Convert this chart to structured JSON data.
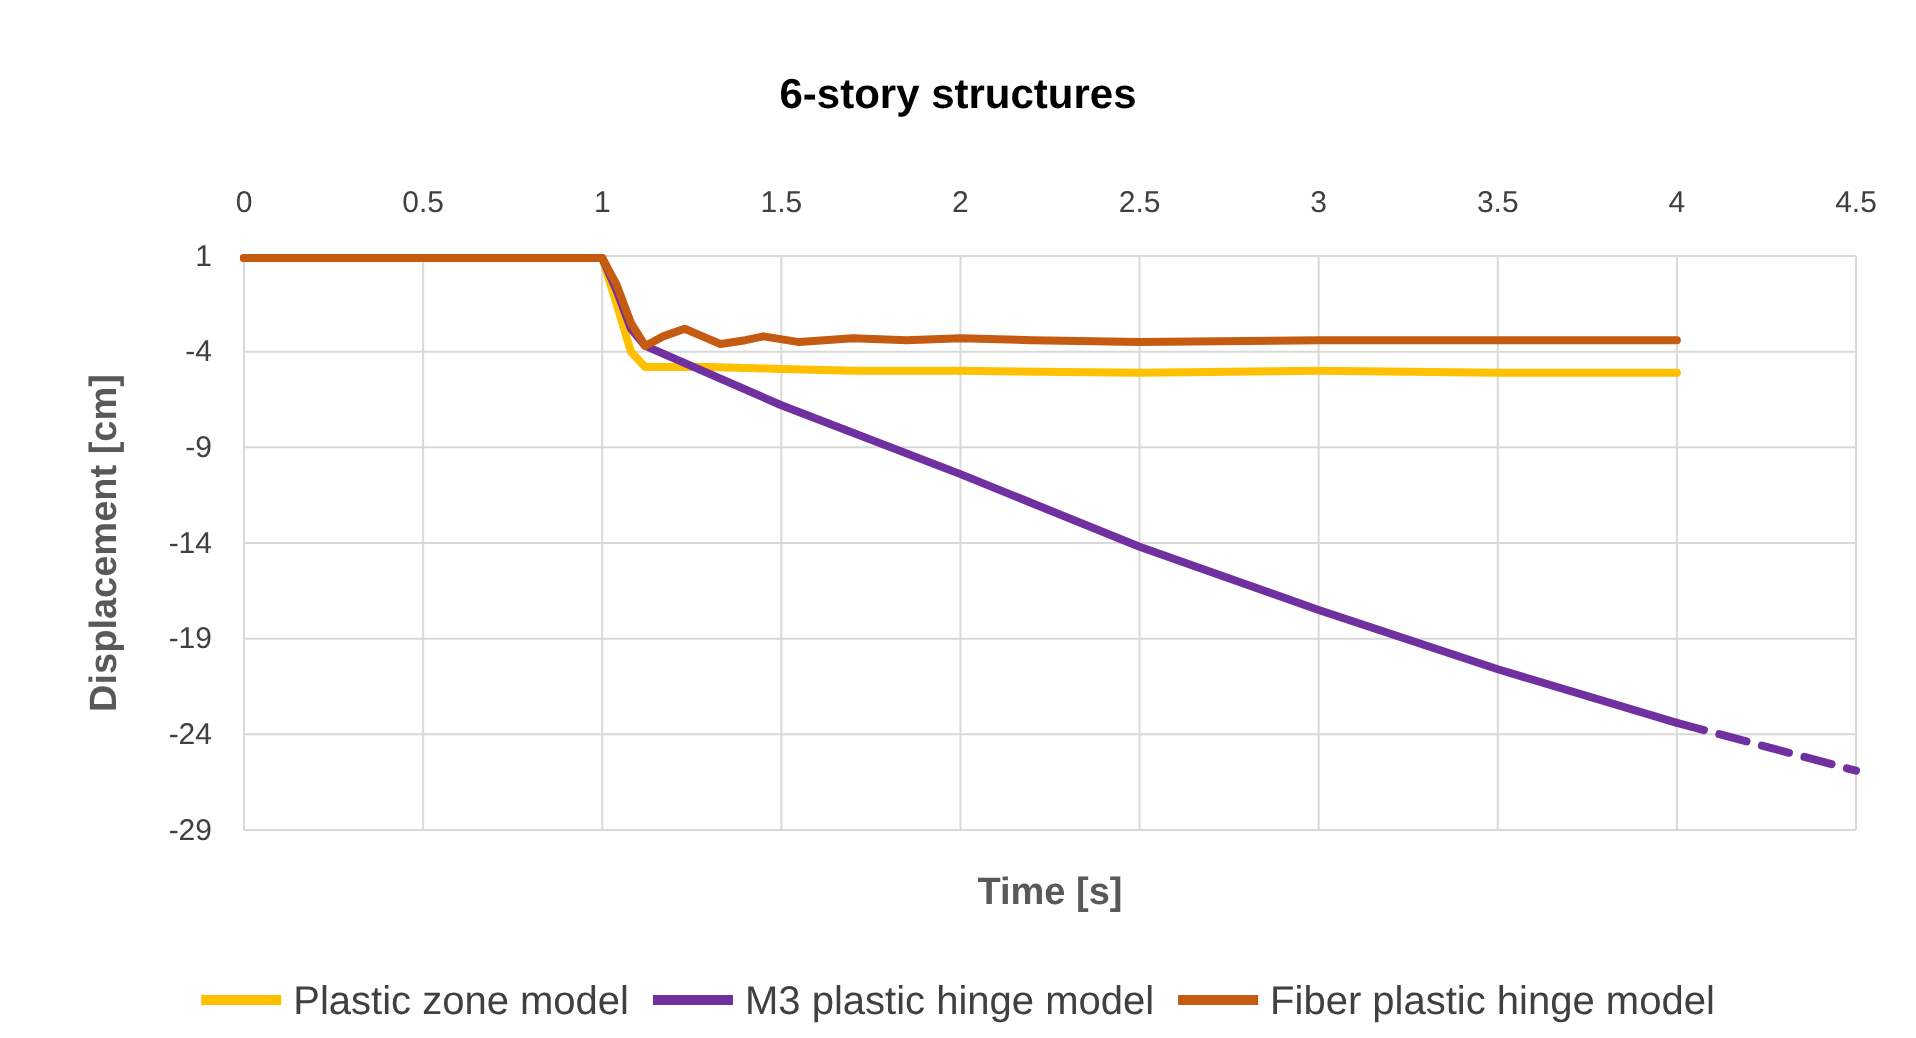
{
  "chart_data": {
    "type": "line",
    "title": "6-story structures",
    "xlabel": "Time [s]",
    "ylabel": "Displacement [cm]",
    "xlim": [
      0,
      4.5
    ],
    "xticks": [
      0,
      0.5,
      1,
      1.5,
      2,
      2.5,
      3,
      3.5,
      4,
      4.5
    ],
    "ylim": [
      -29,
      1
    ],
    "yticks": [
      1,
      -4,
      -9,
      -14,
      -19,
      -24,
      -29
    ],
    "grid": true,
    "legend": "bottom",
    "marker": "none",
    "line_style": "solid",
    "series": [
      {
        "name": "Plastic zone model",
        "color": "#ffc000",
        "x": [
          0,
          1,
          1.04,
          1.08,
          1.12,
          1.2,
          1.3,
          1.5,
          1.7,
          2,
          2.5,
          3,
          3.5,
          4
        ],
        "values": [
          0.9,
          0.9,
          -1.5,
          -4.0,
          -4.8,
          -4.8,
          -4.8,
          -4.9,
          -5.0,
          -5.0,
          -5.1,
          -5.0,
          -5.1,
          -5.1
        ]
      },
      {
        "name": "M3 plastic hinge model",
        "color": "#7030a0",
        "x": [
          0,
          1,
          1.04,
          1.08,
          1.12,
          1.5,
          2,
          2.5,
          3,
          3.5,
          4
        ],
        "values": [
          0.9,
          0.9,
          -0.8,
          -2.8,
          -3.7,
          -6.8,
          -10.4,
          -14.2,
          -17.5,
          -20.6,
          -23.4
        ]
      },
      {
        "color": "#7030a0",
        "line_style": "dashed",
        "x": [
          4,
          4.5
        ],
        "values": [
          -23.4,
          -25.9
        ]
      },
      {
        "name": "Fiber plastic hinge model",
        "color": "#c55a11",
        "x": [
          0,
          1,
          1.04,
          1.08,
          1.12,
          1.17,
          1.23,
          1.28,
          1.33,
          1.4,
          1.45,
          1.55,
          1.7,
          1.85,
          2,
          2.2,
          2.5,
          3,
          3.5,
          4
        ],
        "values": [
          0.9,
          0.9,
          -0.5,
          -2.5,
          -3.7,
          -3.2,
          -2.8,
          -3.2,
          -3.6,
          -3.4,
          -3.2,
          -3.5,
          -3.3,
          -3.4,
          -3.3,
          -3.4,
          -3.5,
          -3.4,
          -3.4,
          -3.4
        ]
      }
    ]
  }
}
